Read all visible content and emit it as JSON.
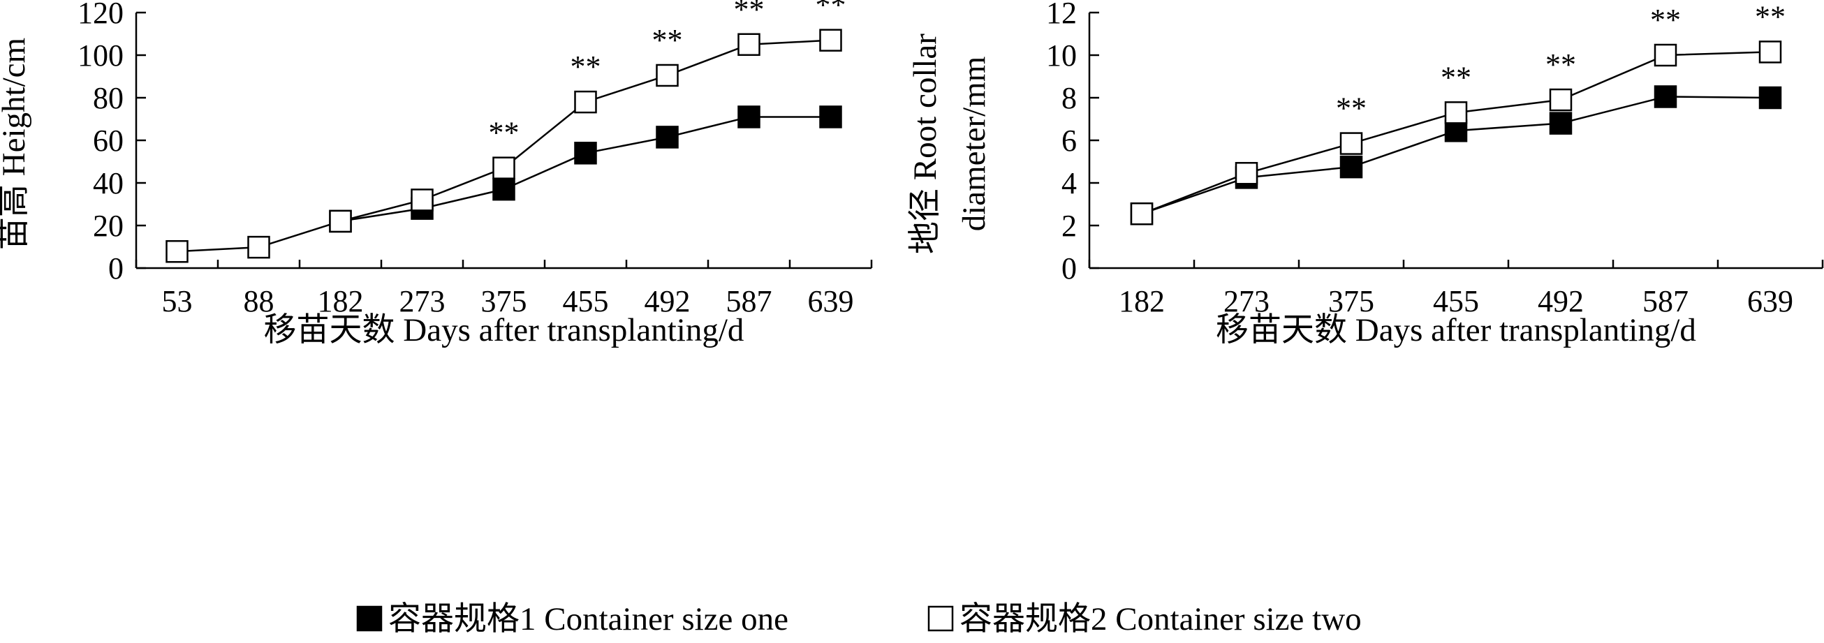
{
  "chart_data": [
    {
      "type": "line",
      "ylabel_lines": [
        "苗高 Height/cm"
      ],
      "xlabel": "移苗天数 Days after transplanting/d",
      "categories": [
        "53",
        "88",
        "182",
        "273",
        "375",
        "455",
        "492",
        "587",
        "639"
      ],
      "ylim": [
        0,
        120
      ],
      "yticks": [
        "0",
        "20",
        "40",
        "60",
        "80",
        "100",
        "120"
      ],
      "series": [
        {
          "name": "容器规格1 Container size one",
          "marker": "filled-square",
          "values": [
            null,
            null,
            22,
            28,
            37,
            54,
            61.5,
            71,
            71
          ]
        },
        {
          "name": "容器规格2 Container size two",
          "marker": "open-square",
          "values": [
            7.8,
            9.8,
            22,
            32,
            47,
            78,
            90.5,
            105,
            107
          ]
        }
      ],
      "significance": [
        "",
        "",
        "",
        "",
        "**",
        "**",
        "**",
        "**",
        "**"
      ]
    },
    {
      "type": "line",
      "ylabel_lines": [
        "地径 Root collar",
        "diameter/mm"
      ],
      "xlabel": "移苗天数 Days after transplanting/d",
      "categories": [
        "182",
        "273",
        "375",
        "455",
        "492",
        "587",
        "639"
      ],
      "ylim": [
        0,
        12
      ],
      "yticks": [
        "0",
        "2",
        "4",
        "6",
        "8",
        "10",
        "12"
      ],
      "series": [
        {
          "name": "容器规格1 Container size one",
          "marker": "filled-square",
          "values": [
            2.55,
            4.25,
            4.75,
            6.45,
            6.8,
            8.05,
            8.0
          ]
        },
        {
          "name": "容器规格2 Container size two",
          "marker": "open-square",
          "values": [
            2.55,
            4.45,
            5.85,
            7.3,
            7.9,
            10.0,
            10.15
          ]
        }
      ],
      "significance": [
        "",
        "",
        "**",
        "**",
        "**",
        "**",
        "**"
      ]
    }
  ],
  "legend": [
    {
      "label": "容器规格1 Container size one",
      "marker": "filled-square"
    },
    {
      "label": "容器规格2 Container size two",
      "marker": "open-square"
    }
  ]
}
